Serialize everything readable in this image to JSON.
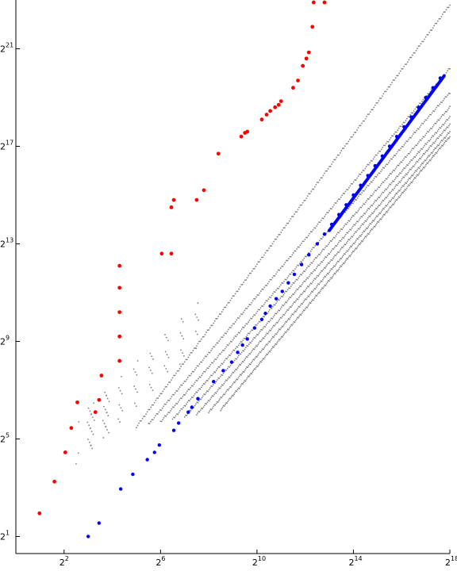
{
  "chart_data": {
    "type": "scatter",
    "title": "",
    "xlabel": "",
    "ylabel": "",
    "x_scale": "log2",
    "y_scale": "log2",
    "xlim_exp": [
      0,
      18
    ],
    "ylim_exp": [
      0.3,
      23
    ],
    "grid": false,
    "legend": "none",
    "x_ticks": [
      {
        "base": "2",
        "exp": "2",
        "value_exp": 2
      },
      {
        "base": "2",
        "exp": "6",
        "value_exp": 6
      },
      {
        "base": "2",
        "exp": "10",
        "value_exp": 10
      },
      {
        "base": "2",
        "exp": "14",
        "value_exp": 14
      },
      {
        "base": "2",
        "exp": "18",
        "value_exp": 18
      }
    ],
    "y_ticks": [
      {
        "base": "2",
        "exp": "1",
        "value_exp": 1
      },
      {
        "base": "2",
        "exp": "5",
        "value_exp": 5
      },
      {
        "base": "2",
        "exp": "9",
        "value_exp": 9
      },
      {
        "base": "2",
        "exp": "13",
        "value_exp": 13
      },
      {
        "base": "2",
        "exp": "17",
        "value_exp": 17
      },
      {
        "base": "2",
        "exp": "21",
        "value_exp": 21
      }
    ],
    "series": [
      {
        "color": "#ff0000",
        "marker": "dot-large",
        "points_log2": [
          [
            0.98,
            1.95
          ],
          [
            1.6,
            3.25
          ],
          [
            2.05,
            4.45
          ],
          [
            2.3,
            5.45
          ],
          [
            2.55,
            6.5
          ],
          [
            3.3,
            6.1
          ],
          [
            3.45,
            6.6
          ],
          [
            3.55,
            7.6
          ],
          [
            4.3,
            8.2
          ],
          [
            4.3,
            9.2
          ],
          [
            4.3,
            10.2
          ],
          [
            4.3,
            11.2
          ],
          [
            4.3,
            12.1
          ],
          [
            6.45,
            12.6
          ],
          [
            6.05,
            12.6
          ],
          [
            6.45,
            14.5
          ],
          [
            6.55,
            14.8
          ],
          [
            7.5,
            14.8
          ],
          [
            7.8,
            15.2
          ],
          [
            8.4,
            16.7
          ],
          [
            9.35,
            17.4
          ],
          [
            9.5,
            17.55
          ],
          [
            9.6,
            17.6
          ],
          [
            10.2,
            18.1
          ],
          [
            10.4,
            18.3
          ],
          [
            10.55,
            18.45
          ],
          [
            10.75,
            18.6
          ],
          [
            10.9,
            18.7
          ],
          [
            11.0,
            18.85
          ],
          [
            11.5,
            19.4
          ],
          [
            11.7,
            19.7
          ],
          [
            11.9,
            20.3
          ],
          [
            12.05,
            20.6
          ],
          [
            12.15,
            20.85
          ],
          [
            12.3,
            21.9
          ],
          [
            12.35,
            22.9
          ],
          [
            12.8,
            22.9
          ],
          [
            12.95,
            23.5
          ]
        ]
      },
      {
        "color": "#0000ff",
        "marker": "dot-medium",
        "points_log2": [
          [
            3.0,
            1.0
          ],
          [
            3.45,
            1.55
          ],
          [
            4.35,
            2.95
          ],
          [
            4.85,
            3.55
          ],
          [
            5.45,
            4.15
          ],
          [
            5.75,
            4.45
          ],
          [
            5.95,
            4.75
          ],
          [
            6.55,
            5.35
          ],
          [
            6.75,
            5.65
          ],
          [
            7.15,
            6.1
          ],
          [
            7.3,
            6.3
          ],
          [
            7.55,
            6.65
          ],
          [
            8.2,
            7.35
          ],
          [
            8.6,
            7.8
          ],
          [
            8.95,
            8.15
          ],
          [
            9.2,
            8.55
          ],
          [
            9.4,
            8.85
          ],
          [
            9.6,
            9.1
          ],
          [
            9.9,
            9.55
          ],
          [
            10.2,
            9.9
          ],
          [
            10.35,
            10.15
          ],
          [
            10.55,
            10.45
          ],
          [
            10.8,
            10.75
          ],
          [
            11.05,
            11.05
          ],
          [
            11.3,
            11.4
          ],
          [
            11.55,
            11.75
          ],
          [
            11.85,
            12.15
          ],
          [
            12.15,
            12.55
          ],
          [
            12.5,
            13.0
          ],
          [
            12.8,
            13.4
          ],
          [
            13.1,
            13.8
          ],
          [
            13.4,
            14.2
          ],
          [
            13.7,
            14.6
          ],
          [
            14.0,
            15.0
          ],
          [
            14.3,
            15.4
          ],
          [
            14.6,
            15.8
          ],
          [
            14.9,
            16.2
          ],
          [
            15.2,
            16.6
          ],
          [
            15.5,
            17.0
          ],
          [
            15.8,
            17.4
          ],
          [
            16.1,
            17.8
          ],
          [
            16.4,
            18.2
          ],
          [
            16.7,
            18.6
          ],
          [
            17.0,
            19.0
          ],
          [
            17.3,
            19.4
          ],
          [
            17.6,
            19.8
          ]
        ]
      },
      {
        "color": "#808080",
        "marker": "dot-small",
        "lines_log2": [
          {
            "from": [
              5.0,
              5.5
            ],
            "to": [
              18.0,
              22.8
            ]
          },
          {
            "from": [
              5.5,
              5.6
            ],
            "to": [
              18.0,
              20.2
            ]
          },
          {
            "from": [
              6.0,
              5.7
            ],
            "to": [
              18.0,
              19.2
            ]
          },
          {
            "from": [
              6.5,
              5.8
            ],
            "to": [
              18.0,
              18.6
            ]
          },
          {
            "from": [
              7.0,
              5.9
            ],
            "to": [
              18.0,
              18.2
            ]
          },
          {
            "from": [
              7.5,
              6.0
            ],
            "to": [
              18.0,
              17.9
            ]
          },
          {
            "from": [
              8.0,
              6.1
            ],
            "to": [
              18.0,
              17.6
            ]
          },
          {
            "from": [
              8.5,
              6.2
            ],
            "to": [
              18.0,
              17.4
            ]
          }
        ]
      }
    ]
  }
}
